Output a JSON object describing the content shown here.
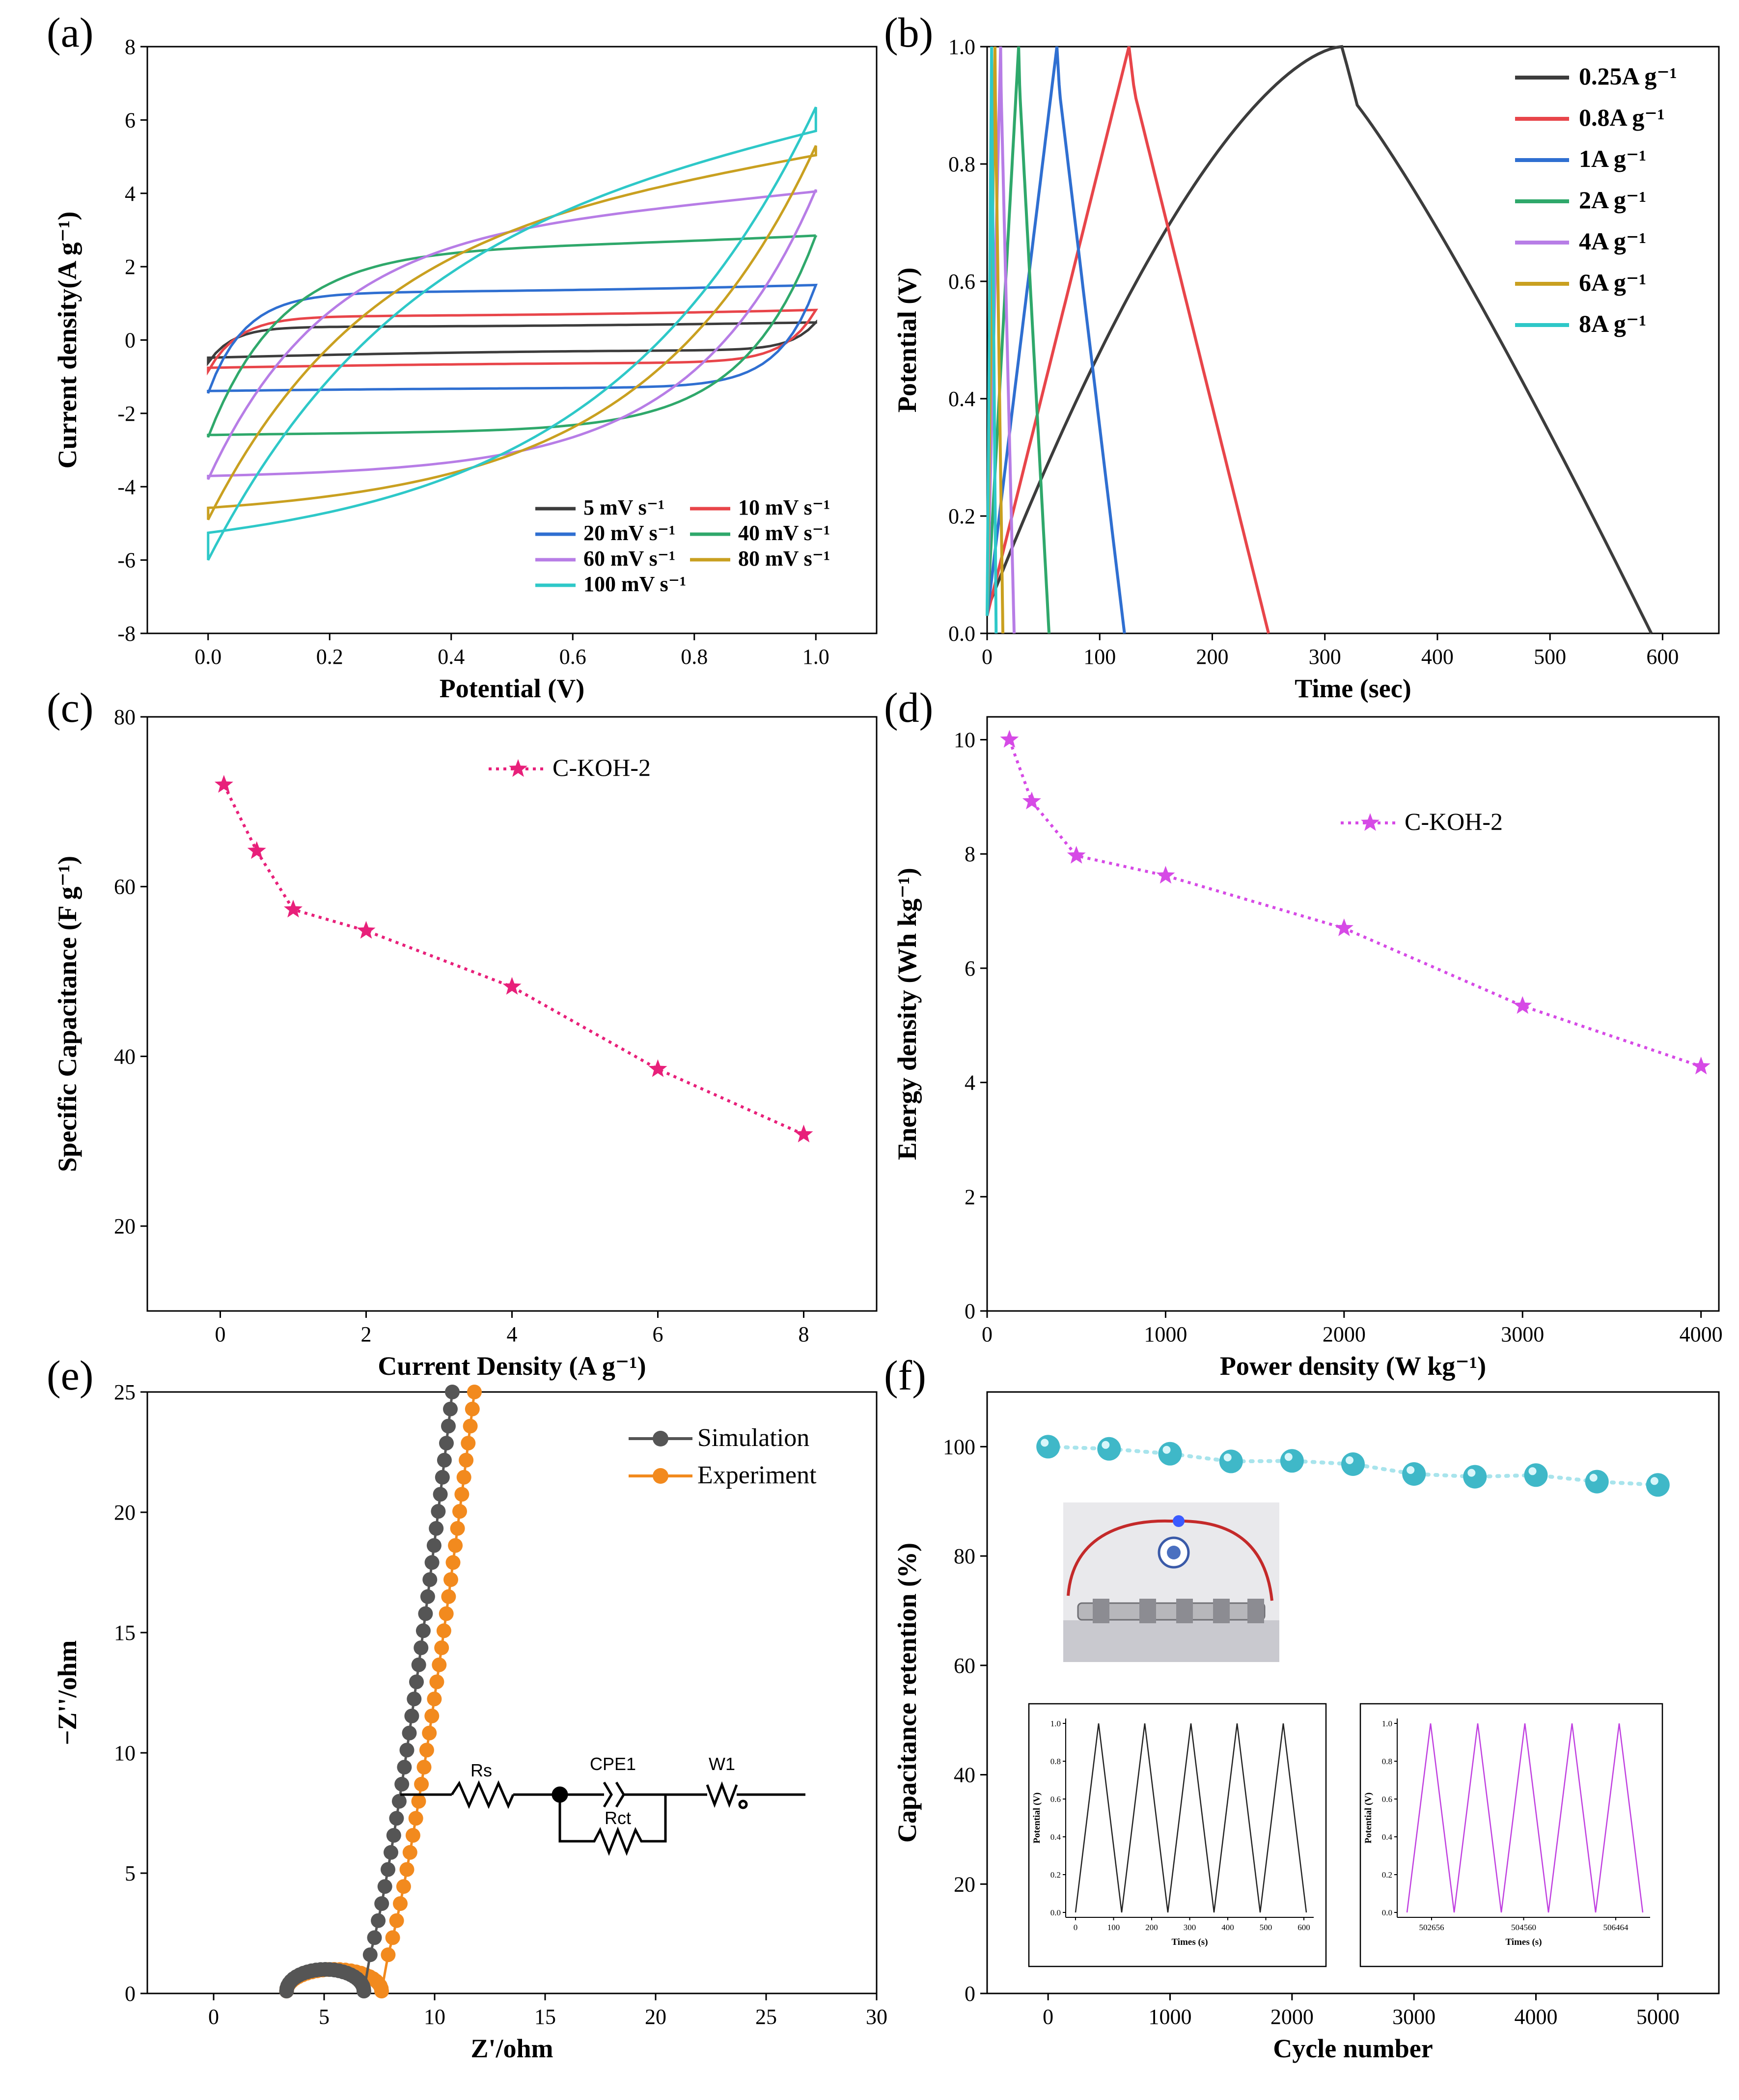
{
  "panels": [
    {
      "id": "a",
      "tag": "(a)",
      "type": "line",
      "title": "",
      "xlabel": "Potential (V)",
      "ylabel": "Current density(A g⁻¹)",
      "xlim": [
        -0.1,
        1.1
      ],
      "ylim": [
        -8,
        8
      ],
      "xticks": [
        0.0,
        0.2,
        0.4,
        0.6,
        0.8,
        1.0
      ],
      "xtick_labels": [
        "0.0",
        "0.2",
        "0.4",
        "0.6",
        "0.8",
        "1.0"
      ],
      "yticks": [
        -8,
        -6,
        -4,
        -2,
        0,
        2,
        4,
        6,
        8
      ],
      "ytick_labels": [
        "-8",
        "-6",
        "-4",
        "-2",
        "0",
        "2",
        "4",
        "6",
        "8"
      ],
      "series": [
        {
          "name": "5 mV s⁻¹",
          "color": "#3c3c3c",
          "cv": {
            "ip": 0.48,
            "in": -0.62,
            "plateau_up": 0.36,
            "plateau_dn": -0.28,
            "tau": 0.04
          }
        },
        {
          "name": "10 mV s⁻¹",
          "color": "#e8454a",
          "cv": {
            "ip": 0.82,
            "in": -0.85,
            "plateau_up": 0.65,
            "plateau_dn": -0.62,
            "tau": 0.05
          }
        },
        {
          "name": "20 mV s⁻¹",
          "color": "#2f6fd1",
          "cv": {
            "ip": 1.5,
            "in": -1.45,
            "plateau_up": 1.3,
            "plateau_dn": -1.3,
            "tau": 0.06
          }
        },
        {
          "name": "40 mV s⁻¹",
          "color": "#2fa86b",
          "cv": {
            "ip": 2.85,
            "in": -2.65,
            "plateau_up": 2.5,
            "plateau_dn": -2.5,
            "tau": 0.12
          }
        },
        {
          "name": "60 mV s⁻¹",
          "color": "#b77de6",
          "cv": {
            "ip": 4.1,
            "in": -3.8,
            "plateau_up": 3.4,
            "plateau_dn": -3.7,
            "tau": 0.2
          }
        },
        {
          "name": "80 mV s⁻¹",
          "color": "#c9a020",
          "cv": {
            "ip": 5.3,
            "in": -4.9,
            "plateau_up": 4.3,
            "plateau_dn": -4.8,
            "tau": 0.28
          }
        },
        {
          "name": "100 mV s⁻¹",
          "color": "#2ec8c8",
          "cv": {
            "ip": 6.35,
            "in": -6.0,
            "plateau_up": 5.3,
            "plateau_dn": -5.9,
            "tau": 0.35
          }
        }
      ],
      "legend": "bottom-right"
    },
    {
      "id": "b",
      "tag": "(b)",
      "type": "line",
      "xlabel": "Time (sec)",
      "ylabel": "Potential (V)",
      "xlim": [
        0,
        650
      ],
      "ylim": [
        0,
        1.0
      ],
      "xticks": [
        0,
        100,
        200,
        300,
        400,
        500,
        600
      ],
      "xtick_labels": [
        "0",
        "100",
        "200",
        "300",
        "400",
        "500",
        "600"
      ],
      "yticks": [
        0,
        0.2,
        0.4,
        0.6,
        0.8,
        1.0
      ],
      "ytick_labels": [
        "0.0",
        "0.2",
        "0.4",
        "0.6",
        "0.8",
        "1.0"
      ],
      "series": [
        {
          "name": "0.25A g⁻¹",
          "color": "#3c3c3c",
          "t_peak": 315,
          "t_end": 590
        },
        {
          "name": "0.8A g⁻¹",
          "color": "#e8454a",
          "t_peak": 126,
          "t_end": 250
        },
        {
          "name": "1A g⁻¹",
          "color": "#2f6fd1",
          "t_peak": 62,
          "t_end": 122
        },
        {
          "name": "2A g⁻¹",
          "color": "#2fa86b",
          "t_peak": 28,
          "t_end": 55
        },
        {
          "name": "4A g⁻¹",
          "color": "#b77de6",
          "t_peak": 12,
          "t_end": 24
        },
        {
          "name": "6A g⁻¹",
          "color": "#c9a020",
          "t_peak": 7,
          "t_end": 14
        },
        {
          "name": "8A g⁻¹",
          "color": "#2ec8c8",
          "t_peak": 4,
          "t_end": 8
        }
      ],
      "legend": "top-right"
    },
    {
      "id": "c",
      "tag": "(c)",
      "type": "line",
      "xlabel": "Current Density (A g⁻¹)",
      "ylabel": "Specific Capacitance (F g⁻¹)",
      "xlim": [
        -1,
        9
      ],
      "ylim": [
        10,
        80
      ],
      "xticks": [
        0,
        2,
        4,
        6,
        8
      ],
      "xtick_labels": [
        "0",
        "2",
        "4",
        "6",
        "8"
      ],
      "yticks": [
        20,
        40,
        60,
        80
      ],
      "ytick_labels": [
        "20",
        "40",
        "60",
        "80"
      ],
      "series": [
        {
          "name": "C-KOH-2",
          "color": "#e8207a",
          "x": [
            0.05,
            0.5,
            1,
            2,
            4,
            6,
            8
          ],
          "y": [
            72,
            64.2,
            57.3,
            54.8,
            48.2,
            38.5,
            30.8
          ]
        }
      ],
      "legend": "top-center"
    },
    {
      "id": "d",
      "tag": "(d)",
      "type": "line",
      "xlabel": "Power density (W kg⁻¹)",
      "ylabel": "Energy density (Wh kg⁻¹)",
      "xlim": [
        0,
        4100
      ],
      "ylim": [
        0,
        10.4
      ],
      "xticks": [
        0,
        1000,
        2000,
        3000,
        4000
      ],
      "xtick_labels": [
        "0",
        "1000",
        "2000",
        "3000",
        "4000"
      ],
      "yticks": [
        0,
        2,
        4,
        6,
        8,
        10
      ],
      "ytick_labels": [
        "0",
        "2",
        "4",
        "6",
        "8",
        "10"
      ],
      "series": [
        {
          "name": "C-KOH-2",
          "color": "#d64ae6",
          "x": [
            125,
            250,
            500,
            1000,
            2000,
            3000,
            4000
          ],
          "y": [
            10.0,
            8.92,
            7.97,
            7.62,
            6.7,
            5.34,
            4.28
          ]
        }
      ],
      "legend": "top-right"
    },
    {
      "id": "e",
      "tag": "(e)",
      "type": "scatter",
      "xlabel": "Z'/ohm",
      "ylabel": "−Z''/ohm",
      "xlim": [
        -3,
        30
      ],
      "ylim": [
        0,
        25
      ],
      "xticks": [
        0,
        5,
        10,
        15,
        20,
        25,
        30
      ],
      "xtick_labels": [
        "0",
        "5",
        "10",
        "15",
        "20",
        "25",
        "30"
      ],
      "yticks": [
        0,
        5,
        10,
        15,
        20,
        25
      ],
      "ytick_labels": [
        "0",
        "5",
        "10",
        "15",
        "20",
        "25"
      ],
      "series": [
        {
          "name": "Simulation",
          "color": "#555555",
          "semicircle": {
            "x0": 3.3,
            "x1": 6.8,
            "h": 1.0
          },
          "tail": {
            "x0": 6.8,
            "y0": 0.9,
            "x1": 10.8,
            "y1": 25
          }
        },
        {
          "name": "Experiment",
          "color": "#f28a1e",
          "semicircle": {
            "x0": 3.3,
            "x1": 7.6,
            "h": 1.0
          },
          "tail": {
            "x0": 7.6,
            "y0": 0.9,
            "x1": 11.8,
            "y1": 25
          }
        }
      ],
      "circuit_labels": [
        "Rs",
        "CPE1",
        "W1",
        "Rct"
      ],
      "legend": "top-right"
    },
    {
      "id": "f",
      "tag": "(f)",
      "type": "scatter",
      "xlabel": "Cycle number",
      "ylabel": "Capacitance retention (%)",
      "xlim": [
        -500,
        5500
      ],
      "ylim": [
        0,
        110
      ],
      "xticks": [
        0,
        1000,
        2000,
        3000,
        4000,
        5000
      ],
      "xtick_labels": [
        "0",
        "1000",
        "2000",
        "3000",
        "4000",
        "5000"
      ],
      "yticks": [
        0,
        20,
        40,
        60,
        80,
        100
      ],
      "ytick_labels": [
        "0",
        "20",
        "40",
        "60",
        "80",
        "100"
      ],
      "series": [
        {
          "name": "retention",
          "color": "#3fb8c8",
          "x": [
            0,
            500,
            1000,
            1500,
            2000,
            2500,
            3000,
            3500,
            4000,
            4500,
            5000
          ],
          "y": [
            100,
            99.6,
            98.7,
            97.3,
            97.4,
            96.8,
            95.0,
            94.5,
            94.8,
            93.6,
            93.0
          ]
        }
      ],
      "inset_left": {
        "xlabel": "Times (s)",
        "ylabel": "Potential (V)",
        "xtick_labels": [
          "0",
          "100",
          "200",
          "300",
          "400",
          "500",
          "600"
        ],
        "ytick_labels": [
          "0.0",
          "0.2",
          "0.4",
          "0.6",
          "0.8",
          "1.0"
        ],
        "color": "#222222"
      },
      "inset_right": {
        "xlabel": "Times (s)",
        "ylabel": "Potential (V)",
        "xtick_labels": [
          "502656",
          "504560",
          "506464"
        ],
        "ytick_labels": [
          "0.0",
          "0.2",
          "0.4",
          "0.6",
          "0.8",
          "1.0"
        ],
        "color": "#c040e0"
      }
    }
  ],
  "chart_data": [
    {
      "type": "line",
      "title": "(a)",
      "xlabel": "Potential (V)",
      "ylabel": "Current density(A g⁻¹)",
      "xlim": [
        -0.1,
        1.1
      ],
      "ylim": [
        -8,
        8
      ],
      "series": [
        {
          "name": "5 mV s⁻¹",
          "peak_anodic": 0.48,
          "peak_cathodic": -0.62
        },
        {
          "name": "10 mV s⁻¹",
          "peak_anodic": 0.82,
          "peak_cathodic": -0.85
        },
        {
          "name": "20 mV s⁻¹",
          "peak_anodic": 1.5,
          "peak_cathodic": -1.45
        },
        {
          "name": "40 mV s⁻¹",
          "peak_anodic": 2.85,
          "peak_cathodic": -2.65
        },
        {
          "name": "60 mV s⁻¹",
          "peak_anodic": 4.1,
          "peak_cathodic": -3.8
        },
        {
          "name": "80 mV s⁻¹",
          "peak_anodic": 5.3,
          "peak_cathodic": -4.9
        },
        {
          "name": "100 mV s⁻¹",
          "peak_anodic": 6.35,
          "peak_cathodic": -6.0
        }
      ]
    },
    {
      "type": "line",
      "title": "(b)",
      "xlabel": "Time (sec)",
      "ylabel": "Potential (V)",
      "xlim": [
        0,
        650
      ],
      "ylim": [
        0,
        1.0
      ],
      "series": [
        {
          "name": "0.25A g⁻¹",
          "charge_end_s": 315,
          "discharge_end_s": 590
        },
        {
          "name": "0.8A g⁻¹",
          "charge_end_s": 126,
          "discharge_end_s": 250
        },
        {
          "name": "1A g⁻¹",
          "charge_end_s": 62,
          "discharge_end_s": 122
        },
        {
          "name": "2A g⁻¹",
          "charge_end_s": 28,
          "discharge_end_s": 55
        },
        {
          "name": "4A g⁻¹",
          "charge_end_s": 12,
          "discharge_end_s": 24
        },
        {
          "name": "6A g⁻¹",
          "charge_end_s": 7,
          "discharge_end_s": 14
        },
        {
          "name": "8A g⁻¹",
          "charge_end_s": 4,
          "discharge_end_s": 8
        }
      ]
    },
    {
      "type": "line",
      "title": "(c)",
      "xlabel": "Current Density (A g⁻¹)",
      "ylabel": "Specific Capacitance (F g⁻¹)",
      "ylim": [
        10,
        80
      ],
      "series": [
        {
          "name": "C-KOH-2",
          "x": [
            0.05,
            0.5,
            1,
            2,
            4,
            6,
            8
          ],
          "y": [
            72,
            64.2,
            57.3,
            54.8,
            48.2,
            38.5,
            30.8
          ]
        }
      ]
    },
    {
      "type": "line",
      "title": "(d)",
      "xlabel": "Power density (W kg⁻¹)",
      "ylabel": "Energy density (Wh kg⁻¹)",
      "ylim": [
        0,
        10.4
      ],
      "series": [
        {
          "name": "C-KOH-2",
          "x": [
            125,
            250,
            500,
            1000,
            2000,
            3000,
            4000
          ],
          "y": [
            10.0,
            8.92,
            7.97,
            7.62,
            6.7,
            5.34,
            4.28
          ]
        }
      ]
    },
    {
      "type": "scatter",
      "title": "(e)",
      "xlabel": "Z'/ohm",
      "ylabel": "−Z''/ohm",
      "xlim": [
        -3,
        30
      ],
      "ylim": [
        0,
        25
      ],
      "series": [
        {
          "name": "Simulation"
        },
        {
          "name": "Experiment"
        }
      ]
    },
    {
      "type": "scatter",
      "title": "(f)",
      "xlabel": "Cycle number",
      "ylabel": "Capacitance retention (%)",
      "ylim": [
        0,
        110
      ],
      "series": [
        {
          "name": "retention",
          "x": [
            0,
            500,
            1000,
            1500,
            2000,
            2500,
            3000,
            3500,
            4000,
            4500,
            5000
          ],
          "y": [
            100,
            99.6,
            98.7,
            97.3,
            97.4,
            96.8,
            95.0,
            94.5,
            94.8,
            93.6,
            93.0
          ]
        }
      ]
    }
  ]
}
